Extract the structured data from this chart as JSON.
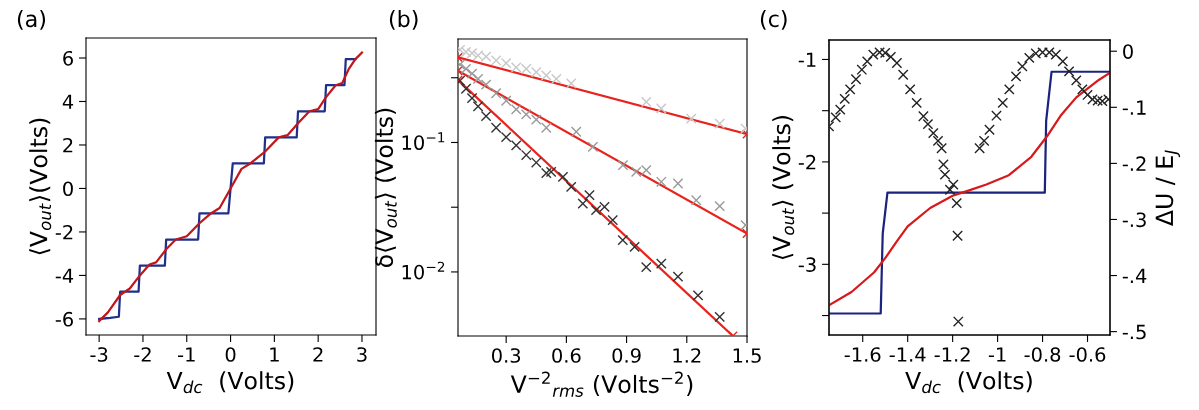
{
  "chart_data": [
    {
      "type": "line",
      "annotations": [
        "(a)"
      ],
      "xlabel": "V$_{dc}$  (Volts)",
      "ylabel": "⟨V$_{out}$⟩(Volts)",
      "xlim": [
        -3.3,
        3.32
      ],
      "ylim": [
        -6.74,
        6.92
      ],
      "xticks": [
        -3,
        -2,
        -1,
        0,
        1,
        2,
        3
      ],
      "yticks": [
        -6,
        -4,
        -2,
        0,
        2,
        4,
        6
      ],
      "grid": false,
      "marker": "none",
      "line_style": "solid",
      "series": [
        {
          "color": "#1f2f8a",
          "x": [
            -3.0,
            -2.75,
            -2.55,
            -2.52,
            -2.1,
            -2.07,
            -1.5,
            -1.47,
            -0.74,
            -0.71,
            -0.05,
            0.05,
            0.76,
            0.79,
            1.51,
            1.54,
            2.15,
            2.18,
            2.6,
            2.63,
            2.85
          ],
          "values": [
            -6.0,
            -5.95,
            -5.9,
            -4.75,
            -4.75,
            -3.55,
            -3.55,
            -2.35,
            -2.35,
            -1.15,
            -1.15,
            1.15,
            1.15,
            2.35,
            2.35,
            3.55,
            3.55,
            4.75,
            4.75,
            5.95,
            5.95
          ]
        },
        {
          "color": "#c0161c",
          "x": [
            -3.0,
            -2.8,
            -2.52,
            -2.3,
            -2.07,
            -1.85,
            -1.7,
            -1.47,
            -1.25,
            -1.0,
            -0.71,
            -0.45,
            -0.25,
            0.0,
            0.25,
            0.45,
            0.79,
            1.1,
            1.3,
            1.54,
            1.8,
            2.0,
            2.18,
            2.4,
            2.55,
            2.7,
            2.85,
            3.0
          ],
          "values": [
            -6.1,
            -5.7,
            -4.9,
            -4.6,
            -4.0,
            -3.5,
            -3.4,
            -2.8,
            -2.35,
            -2.2,
            -1.6,
            -1.15,
            -0.9,
            0.0,
            0.9,
            1.15,
            1.7,
            2.35,
            2.45,
            3.0,
            3.55,
            3.65,
            4.2,
            4.75,
            4.85,
            5.5,
            5.95,
            6.25
          ]
        }
      ]
    },
    {
      "type": "scatter",
      "annotations": [
        "(b)"
      ],
      "xlabel": "V$^{−2}$$_{rms}$ (Volts$^{−2}$)",
      "ylabel": "δ⟨V$_{out}$⟩ (Volts)",
      "log": "y",
      "xlim": [
        0.06,
        1.5
      ],
      "ylim": [
        0.0032,
        0.63
      ],
      "xticks": [
        0.3,
        0.6,
        0.9,
        1.2,
        1.5
      ],
      "yticks": [
        {
          "value": 0.3162,
          "label": null
        },
        {
          "value": 0.1,
          "label": "10$^{−1}$"
        },
        {
          "value": 0.03162,
          "label": null
        },
        {
          "value": 0.01,
          "label": "10$^{−2}$"
        }
      ],
      "grid": false,
      "marker": "cross",
      "series": [
        {
          "color": "#c8c8c8",
          "x": [
            0.07,
            0.1,
            0.13,
            0.16,
            0.2,
            0.25,
            0.3,
            0.35,
            0.4,
            0.45,
            0.5,
            0.55,
            0.624,
            0.998,
            1.073,
            1.222,
            1.364,
            1.493
          ],
          "values": [
            0.52,
            0.5,
            0.49,
            0.47,
            0.46,
            0.43,
            0.41,
            0.38,
            0.37,
            0.35,
            0.33,
            0.31,
            0.286,
            0.206,
            0.183,
            0.153,
            0.14,
            0.128
          ]
        },
        {
          "color": "#999999",
          "x": [
            0.07,
            0.1,
            0.13,
            0.16,
            0.2,
            0.25,
            0.3,
            0.35,
            0.4,
            0.45,
            0.5,
            0.649,
            0.732,
            0.882,
            0.948,
            0.998,
            1.073,
            1.156,
            1.247,
            1.364,
            1.493
          ],
          "values": [
            0.4,
            0.37,
            0.34,
            0.31,
            0.28,
            0.24,
            0.21,
            0.18,
            0.165,
            0.15,
            0.13,
            0.121,
            0.0925,
            0.0669,
            0.0593,
            0.0611,
            0.0497,
            0.0482,
            0.0358,
            0.0322,
            0.023
          ]
        },
        {
          "color": "#333333",
          "x": [
            0.07,
            0.1,
            0.13,
            0.16,
            0.2,
            0.25,
            0.3,
            0.35,
            0.4,
            0.45,
            0.5,
            0.524,
            0.583,
            0.624,
            0.682,
            0.715,
            0.748,
            0.79,
            0.831,
            0.881,
            0.94,
            0.998,
            1.073,
            1.156,
            1.256,
            1.364
          ],
          "values": [
            0.3,
            0.26,
            0.22,
            0.19,
            0.16,
            0.13,
            0.11,
            0.095,
            0.08,
            0.07,
            0.058,
            0.0593,
            0.0543,
            0.0454,
            0.0337,
            0.0392,
            0.03,
            0.0318,
            0.0251,
            0.0176,
            0.0156,
            0.0109,
            0.0116,
            0.0092,
            0.0066,
            0.0045
          ]
        },
        {
          "type": "line",
          "color": "#e8221c",
          "x": [
            0.06,
            1.5
          ],
          "values": [
            0.454,
            0.116
          ]
        },
        {
          "type": "line",
          "color": "#e8221c",
          "x": [
            0.06,
            1.5
          ],
          "values": [
            0.358,
            0.0198
          ]
        },
        {
          "type": "line",
          "color": "#e8221c",
          "x": [
            0.06,
            1.43
          ],
          "values": [
            0.303,
            0.0032
          ]
        }
      ]
    },
    {
      "type": "line",
      "annotations": [
        "(c)"
      ],
      "xlabel": "V$_{dc}$  (Volts)",
      "ylabel": "⟨V$_{out}$⟩ (Volts)",
      "y2label": "ΔU / E$_{J}$",
      "xlim": [
        -1.75,
        -0.5
      ],
      "ylim": [
        -3.69,
        -0.81
      ],
      "y2lim": [
        -0.506,
        0.02
      ],
      "xticks": [
        -1.6,
        -1.4,
        -1.2,
        -1,
        -0.8,
        -0.6
      ],
      "yticks": [
        -1,
        {
          "value": -1.5,
          "label": null
        },
        -2,
        {
          "value": -2.5,
          "label": null
        },
        -3,
        {
          "value": -3.5,
          "label": null
        }
      ],
      "y2ticks": [
        {
          "value": 0,
          "label": "0"
        },
        {
          "value": -0.1,
          "label": "-.1"
        },
        {
          "value": -0.2,
          "label": "-.2"
        },
        {
          "value": -0.3,
          "label": "-.3"
        },
        {
          "value": -0.4,
          "label": "-.4"
        },
        {
          "value": -0.5,
          "label": "-.5"
        }
      ],
      "grid": false,
      "series": [
        {
          "color": "#1a237e",
          "x": [
            -1.75,
            -1.52,
            -1.511,
            -1.49,
            -0.79,
            -0.784,
            -0.76,
            -0.5
          ],
          "values": [
            -3.48,
            -3.48,
            -2.7,
            -2.3,
            -2.3,
            -1.6,
            -1.12,
            -1.12
          ]
        },
        {
          "color": "#d7191c",
          "x": [
            -1.75,
            -1.65,
            -1.55,
            -1.5,
            -1.45,
            -1.4,
            -1.3,
            -1.2,
            -1.13,
            -1.05,
            -0.95,
            -0.85,
            -0.78,
            -0.72,
            -0.65,
            -0.55,
            -0.5
          ],
          "values": [
            -3.4,
            -3.27,
            -3.08,
            -2.94,
            -2.78,
            -2.63,
            -2.45,
            -2.33,
            -2.28,
            -2.22,
            -2.13,
            -1.95,
            -1.75,
            -1.55,
            -1.37,
            -1.2,
            -1.13
          ]
        },
        {
          "type": "scatter",
          "axis": "y2",
          "marker": "cross",
          "color": "#222222",
          "x": [
            -1.75,
            -1.72,
            -1.7,
            -1.68,
            -1.656,
            -1.63,
            -1.604,
            -1.58,
            -1.553,
            -1.525,
            -1.5,
            -1.475,
            -1.448,
            -1.42,
            -1.389,
            -1.36,
            -1.33,
            -1.31,
            -1.286,
            -1.265,
            -1.249,
            -1.241,
            -1.234,
            -1.212,
            -1.197,
            -1.182,
            -1.178,
            -1.175,
            -1.08,
            -1.06,
            -1.036,
            -1.005,
            -0.977,
            -0.948,
            -0.918,
            -0.89,
            -0.859,
            -0.83,
            -0.8,
            -0.77,
            -0.741,
            -0.71,
            -0.682,
            -0.65,
            -0.623,
            -0.6,
            -0.578,
            -0.555,
            -0.534,
            -0.507
          ],
          "values": [
            -0.134,
            -0.118,
            -0.104,
            -0.085,
            -0.068,
            -0.05,
            -0.033,
            -0.018,
            -0.006,
            -0.002,
            -0.003,
            -0.01,
            -0.021,
            -0.042,
            -0.068,
            -0.092,
            -0.116,
            -0.13,
            -0.146,
            -0.16,
            -0.173,
            -0.202,
            -0.22,
            -0.247,
            -0.238,
            -0.271,
            -0.329,
            -0.482,
            -0.173,
            -0.16,
            -0.14,
            -0.115,
            -0.092,
            -0.068,
            -0.045,
            -0.027,
            -0.012,
            -0.004,
            -0.002,
            -0.002,
            -0.006,
            -0.018,
            -0.036,
            -0.052,
            -0.068,
            -0.078,
            -0.086,
            -0.088,
            -0.089,
            -0.086
          ]
        }
      ]
    }
  ]
}
